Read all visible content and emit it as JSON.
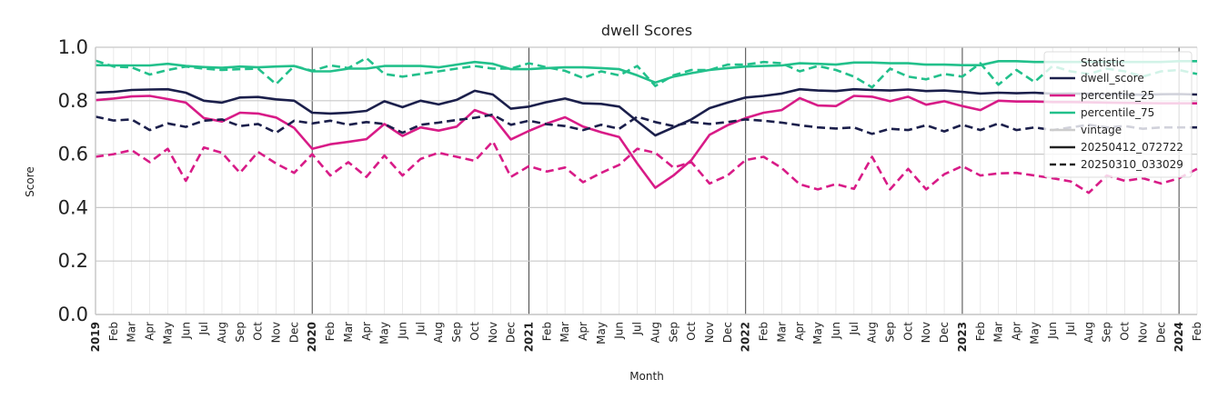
{
  "chart_data": {
    "type": "line",
    "title": "dwell Scores",
    "xlabel": "Month",
    "ylabel": "Score",
    "ylim": [
      0.0,
      1.0
    ],
    "yticks": [
      "0.0",
      "0.2",
      "0.4",
      "0.6",
      "0.8",
      "1.0"
    ],
    "x_start": "2019-01",
    "x_end": "2024-02",
    "grid": true,
    "legend_position": "top-right",
    "legend": {
      "title": "Statistic",
      "entries": [
        {
          "label": "dwell_score",
          "kind": "color",
          "color": "#1b1f4b"
        },
        {
          "label": "percentile_25",
          "kind": "color",
          "color": "#d81b87"
        },
        {
          "label": "percentile_75",
          "kind": "color",
          "color": "#22c08b"
        },
        {
          "label": "vintage",
          "kind": "header",
          "color": "#cccccc"
        },
        {
          "label": "20250412_072722",
          "kind": "solid",
          "color": "#222222"
        },
        {
          "label": "20250310_033029",
          "kind": "dashed",
          "color": "#222222"
        }
      ]
    },
    "month_labels": [
      "Jan",
      "Feb",
      "Mar",
      "Apr",
      "May",
      "Jun",
      "Jul",
      "Aug",
      "Sep",
      "Oct",
      "Nov",
      "Dec"
    ],
    "series": [
      {
        "statistic": "dwell_score",
        "vintage": "20250412_072722",
        "style": "solid",
        "color": "#1b1f4b",
        "values": [
          0.83,
          0.833,
          0.84,
          0.842,
          0.843,
          0.83,
          0.8,
          0.793,
          0.812,
          0.814,
          0.805,
          0.8,
          0.755,
          0.752,
          0.755,
          0.762,
          0.798,
          0.776,
          0.8,
          0.786,
          0.803,
          0.837,
          0.823,
          0.77,
          0.778,
          0.795,
          0.808,
          0.79,
          0.788,
          0.778,
          0.723,
          0.67,
          0.7,
          0.73,
          0.772,
          0.793,
          0.812,
          0.818,
          0.827,
          0.843,
          0.838,
          0.836,
          0.843,
          0.84,
          0.838,
          0.842,
          0.836,
          0.838,
          0.833,
          0.827,
          0.83,
          0.828,
          0.83,
          0.826,
          0.827,
          0.826,
          0.824,
          0.824,
          0.822,
          0.824,
          0.825,
          0.823
        ]
      },
      {
        "statistic": "percentile_25",
        "vintage": "20250412_072722",
        "style": "solid",
        "color": "#d81b87",
        "values": [
          0.802,
          0.808,
          0.816,
          0.818,
          0.806,
          0.793,
          0.735,
          0.722,
          0.755,
          0.752,
          0.737,
          0.698,
          0.62,
          0.637,
          0.646,
          0.656,
          0.713,
          0.668,
          0.7,
          0.688,
          0.703,
          0.765,
          0.74,
          0.655,
          0.687,
          0.715,
          0.738,
          0.703,
          0.682,
          0.664,
          0.565,
          0.474,
          0.52,
          0.578,
          0.672,
          0.708,
          0.735,
          0.755,
          0.765,
          0.81,
          0.782,
          0.78,
          0.818,
          0.815,
          0.798,
          0.815,
          0.785,
          0.798,
          0.78,
          0.765,
          0.8,
          0.797,
          0.797,
          0.795,
          0.795,
          0.794,
          0.793,
          0.792,
          0.791,
          0.79,
          0.79,
          0.79
        ]
      },
      {
        "statistic": "percentile_75",
        "vintage": "20250412_072722",
        "style": "solid",
        "color": "#22c08b",
        "values": [
          0.933,
          0.932,
          0.932,
          0.932,
          0.938,
          0.93,
          0.926,
          0.923,
          0.928,
          0.925,
          0.928,
          0.93,
          0.91,
          0.91,
          0.92,
          0.92,
          0.93,
          0.93,
          0.93,
          0.925,
          0.935,
          0.945,
          0.938,
          0.918,
          0.918,
          0.922,
          0.925,
          0.925,
          0.922,
          0.918,
          0.895,
          0.868,
          0.89,
          0.903,
          0.915,
          0.922,
          0.928,
          0.93,
          0.932,
          0.94,
          0.938,
          0.935,
          0.943,
          0.943,
          0.94,
          0.94,
          0.935,
          0.935,
          0.933,
          0.933,
          0.948,
          0.948,
          0.945,
          0.945,
          0.945,
          0.945,
          0.945,
          0.945,
          0.945,
          0.945,
          0.948,
          0.948
        ]
      },
      {
        "statistic": "dwell_score",
        "vintage": "20250310_033029",
        "style": "dashed",
        "color": "#1b1f4b",
        "values": [
          0.74,
          0.726,
          0.73,
          0.69,
          0.715,
          0.702,
          0.725,
          0.73,
          0.705,
          0.713,
          0.68,
          0.725,
          0.715,
          0.725,
          0.71,
          0.72,
          0.713,
          0.68,
          0.71,
          0.718,
          0.728,
          0.736,
          0.748,
          0.71,
          0.725,
          0.712,
          0.705,
          0.69,
          0.71,
          0.695,
          0.74,
          0.72,
          0.705,
          0.72,
          0.713,
          0.72,
          0.73,
          0.725,
          0.718,
          0.708,
          0.7,
          0.696,
          0.7,
          0.676,
          0.695,
          0.69,
          0.708,
          0.685,
          0.71,
          0.69,
          0.715,
          0.69,
          0.7,
          0.69,
          0.7,
          0.71,
          0.7,
          0.705,
          0.695,
          0.7,
          0.7,
          0.7
        ]
      },
      {
        "statistic": "percentile_25",
        "vintage": "20250310_033029",
        "style": "dashed",
        "color": "#d81b87",
        "values": [
          0.59,
          0.6,
          0.615,
          0.57,
          0.62,
          0.5,
          0.625,
          0.605,
          0.53,
          0.608,
          0.565,
          0.53,
          0.6,
          0.52,
          0.57,
          0.515,
          0.595,
          0.52,
          0.582,
          0.605,
          0.59,
          0.575,
          0.648,
          0.515,
          0.555,
          0.535,
          0.55,
          0.495,
          0.53,
          0.56,
          0.62,
          0.605,
          0.55,
          0.57,
          0.49,
          0.52,
          0.578,
          0.59,
          0.548,
          0.487,
          0.468,
          0.488,
          0.47,
          0.59,
          0.468,
          0.545,
          0.468,
          0.525,
          0.555,
          0.52,
          0.528,
          0.53,
          0.52,
          0.51,
          0.498,
          0.455,
          0.52,
          0.5,
          0.51,
          0.49,
          0.51,
          0.545
        ]
      },
      {
        "statistic": "percentile_75",
        "vintage": "20250310_033029",
        "style": "dashed",
        "color": "#22c08b",
        "values": [
          0.95,
          0.928,
          0.925,
          0.898,
          0.915,
          0.928,
          0.92,
          0.915,
          0.918,
          0.92,
          0.862,
          0.93,
          0.912,
          0.932,
          0.922,
          0.96,
          0.9,
          0.89,
          0.9,
          0.91,
          0.92,
          0.93,
          0.92,
          0.92,
          0.94,
          0.925,
          0.912,
          0.885,
          0.91,
          0.895,
          0.93,
          0.855,
          0.895,
          0.915,
          0.915,
          0.935,
          0.935,
          0.945,
          0.94,
          0.91,
          0.93,
          0.915,
          0.89,
          0.85,
          0.92,
          0.89,
          0.88,
          0.9,
          0.89,
          0.94,
          0.86,
          0.915,
          0.87,
          0.93,
          0.91,
          0.9,
          0.92,
          0.91,
          0.89,
          0.91,
          0.915,
          0.9
        ]
      }
    ]
  }
}
